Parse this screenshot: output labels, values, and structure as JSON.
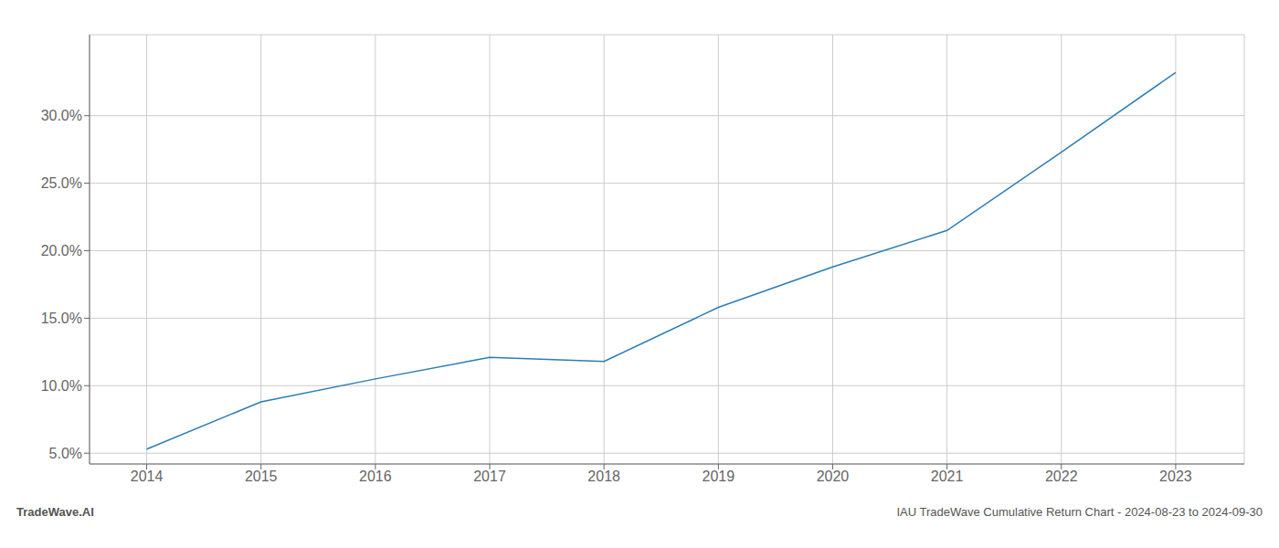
{
  "chart_data": {
    "type": "line",
    "x": [
      2014,
      2015,
      2016,
      2017,
      2018,
      2019,
      2020,
      2021,
      2022,
      2023
    ],
    "values": [
      5.3,
      8.8,
      10.5,
      12.1,
      11.8,
      15.8,
      18.8,
      21.5,
      27.3,
      33.2
    ],
    "color": "#2a7db5",
    "xlim": [
      2013.5,
      2023.6
    ],
    "ylim": [
      4.2,
      36.0
    ],
    "xticks": [
      2014,
      2015,
      2016,
      2017,
      2018,
      2019,
      2020,
      2021,
      2022,
      2023
    ],
    "yticks": [
      {
        "value": 5.0,
        "label": "5.0%"
      },
      {
        "value": 10.0,
        "label": "10.0%"
      },
      {
        "value": 15.0,
        "label": "15.0%"
      },
      {
        "value": 20.0,
        "label": "20.0%"
      },
      {
        "value": 25.0,
        "label": "25.0%"
      },
      {
        "value": 30.0,
        "label": "30.0%"
      }
    ],
    "grid": true,
    "annotations": [
      "TradeWave.AI",
      "IAU TradeWave Cumulative Return Chart - 2024-08-23 to 2024-09-30"
    ]
  }
}
